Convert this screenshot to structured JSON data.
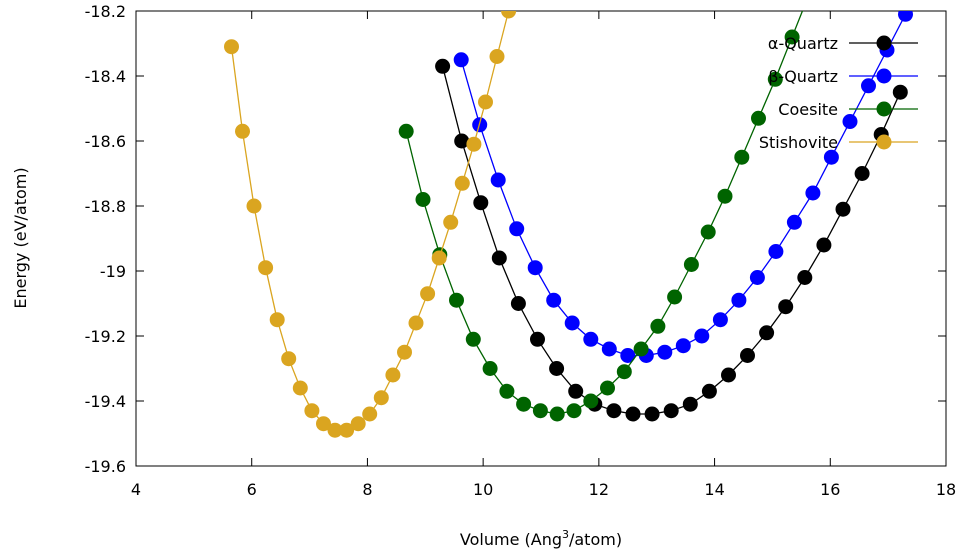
{
  "chart_data": {
    "type": "line",
    "xlabel_prefix": "Volume (Ang",
    "xlabel_sup": "3",
    "xlabel_suffix": "/atom)",
    "ylabel": "Energy (eV/atom)",
    "xlim": [
      4,
      18
    ],
    "ylim": [
      -19.6,
      -18.2
    ],
    "x_ticks": [
      4,
      6,
      8,
      10,
      12,
      14,
      16,
      18
    ],
    "y_ticks": [
      -19.6,
      -19.4,
      -19.2,
      -19.0,
      -18.8,
      -18.6,
      -18.4,
      -18.2
    ],
    "x_tick_labels": [
      "4",
      "6",
      "8",
      "10",
      "12",
      "14",
      "16",
      "18"
    ],
    "y_tick_labels": [
      "-19.6",
      "-19.4",
      "-19.2",
      "-19",
      "-18.8",
      "-18.6",
      "-18.4",
      "-18.2"
    ],
    "legend_position": "top-right",
    "grid": false,
    "series": [
      {
        "name": "α-Quartz",
        "color": "#000000",
        "x": [
          9.3,
          9.63,
          9.96,
          10.28,
          10.61,
          10.94,
          11.27,
          11.6,
          11.93,
          12.26,
          12.59,
          12.92,
          13.25,
          13.58,
          13.91,
          14.24,
          14.57,
          14.9,
          15.23,
          15.56,
          15.89,
          16.22,
          16.55,
          16.88,
          17.21
        ],
        "y": [
          -18.37,
          -18.6,
          -18.79,
          -18.96,
          -19.1,
          -19.21,
          -19.3,
          -19.37,
          -19.41,
          -19.43,
          -19.44,
          -19.44,
          -19.43,
          -19.41,
          -19.37,
          -19.32,
          -19.26,
          -19.19,
          -19.11,
          -19.02,
          -18.92,
          -18.81,
          -18.7,
          -18.58,
          -18.45
        ]
      },
      {
        "name": "β-Quartz",
        "color": "#0000ff",
        "x": [
          9.62,
          9.94,
          10.26,
          10.58,
          10.9,
          11.22,
          11.54,
          11.86,
          12.18,
          12.5,
          12.82,
          13.14,
          13.46,
          13.78,
          14.1,
          14.42,
          14.74,
          15.06,
          15.38,
          15.7,
          16.02,
          16.34,
          16.66,
          16.98,
          17.3
        ],
        "y": [
          -18.35,
          -18.55,
          -18.72,
          -18.87,
          -18.99,
          -19.09,
          -19.16,
          -19.21,
          -19.24,
          -19.26,
          -19.26,
          -19.25,
          -19.23,
          -19.2,
          -19.15,
          -19.09,
          -19.02,
          -18.94,
          -18.85,
          -18.76,
          -18.65,
          -18.54,
          -18.43,
          -18.32,
          -18.21
        ]
      },
      {
        "name": "Coesite",
        "color": "#006400",
        "x": [
          8.67,
          8.96,
          9.25,
          9.54,
          9.83,
          10.12,
          10.41,
          10.7,
          10.99,
          11.28,
          11.57,
          11.86,
          12.15,
          12.44,
          12.73,
          13.02,
          13.31,
          13.6,
          13.89,
          14.18,
          14.47,
          14.76,
          15.05,
          15.34,
          15.63
        ],
        "y": [
          -18.57,
          -18.78,
          -18.95,
          -19.09,
          -19.21,
          -19.3,
          -19.37,
          -19.41,
          -19.43,
          -19.44,
          -19.43,
          -19.4,
          -19.36,
          -19.31,
          -19.24,
          -19.17,
          -19.08,
          -18.98,
          -18.88,
          -18.77,
          -18.65,
          -18.53,
          -18.41,
          -18.28,
          -18.15
        ]
      },
      {
        "name": "Stishovite",
        "color": "#daa520",
        "x": [
          5.65,
          5.84,
          6.04,
          6.24,
          6.44,
          6.64,
          6.84,
          7.04,
          7.24,
          7.44,
          7.64,
          7.84,
          8.04,
          8.24,
          8.44,
          8.64,
          8.84,
          9.04,
          9.24,
          9.44,
          9.64,
          9.84,
          10.04,
          10.24,
          10.44
        ],
        "y": [
          -18.31,
          -18.57,
          -18.8,
          -18.99,
          -19.15,
          -19.27,
          -19.36,
          -19.43,
          -19.47,
          -19.49,
          -19.49,
          -19.47,
          -19.44,
          -19.39,
          -19.32,
          -19.25,
          -19.16,
          -19.07,
          -18.96,
          -18.85,
          -18.73,
          -18.61,
          -18.48,
          -18.34,
          -18.2
        ]
      }
    ]
  }
}
